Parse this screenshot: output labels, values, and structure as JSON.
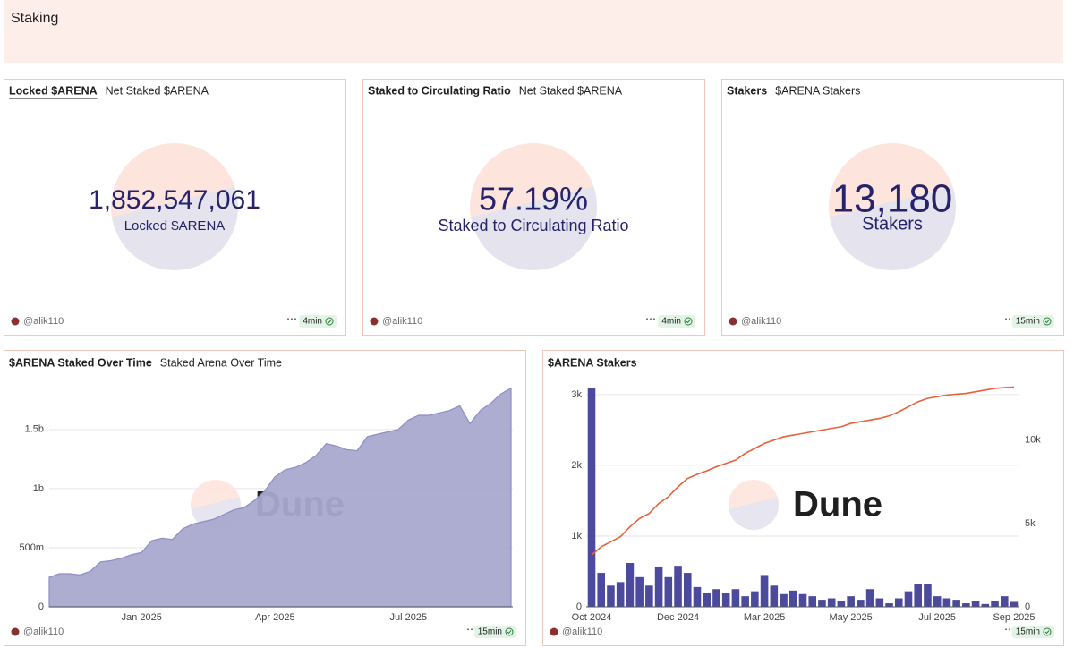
{
  "header": {
    "title": "Staking"
  },
  "counters": [
    {
      "tabs": [
        "Locked $ARENA",
        "Net Staked $ARENA"
      ],
      "value": "1,852,547,061",
      "label": "Locked $ARENA",
      "author": "@alik110",
      "updated": "4min"
    },
    {
      "tabs": [
        "Staked to Circulating Ratio",
        "Net Staked $ARENA"
      ],
      "value": "57.19%",
      "label": "Staked to Circulating Ratio",
      "author": "@alik110",
      "updated": "4min"
    },
    {
      "tabs": [
        "Stakers",
        "$ARENA Stakers"
      ],
      "value": "13,180",
      "label": "Stakers",
      "author": "@alik110",
      "updated": "15min"
    }
  ],
  "chart_data": [
    {
      "type": "area",
      "title": "$ARENA Staked Over Time",
      "subtitle": "Staked Arena Over Time",
      "categories": [
        null,
        null,
        null,
        null,
        null,
        null,
        null,
        null,
        null,
        "Jan 2025",
        null,
        null,
        null,
        null,
        null,
        null,
        null,
        null,
        null,
        null,
        null,
        null,
        "Apr 2025",
        null,
        null,
        null,
        null,
        null,
        null,
        null,
        null,
        null,
        null,
        null,
        null,
        "Jul 2025",
        null,
        null,
        null,
        null,
        null,
        null,
        null,
        null,
        null,
        null
      ],
      "series": [
        {
          "color": "#a9a8cf",
          "values": [
            250000000,
            280000000,
            280000000,
            270000000,
            300000000,
            380000000,
            390000000,
            410000000,
            440000000,
            460000000,
            560000000,
            580000000,
            570000000,
            660000000,
            700000000,
            720000000,
            740000000,
            780000000,
            820000000,
            840000000,
            900000000,
            980000000,
            1100000000,
            1160000000,
            1180000000,
            1220000000,
            1280000000,
            1380000000,
            1360000000,
            1330000000,
            1320000000,
            1440000000,
            1460000000,
            1480000000,
            1500000000,
            1580000000,
            1620000000,
            1620000000,
            1640000000,
            1660000000,
            1700000000,
            1550000000,
            1660000000,
            1720000000,
            1800000000,
            1850000000
          ]
        }
      ],
      "ylim": [
        0,
        1900000000
      ],
      "yticks": [
        0,
        {
          "value": 500000000,
          "label": "500m"
        },
        {
          "value": 1000000000,
          "label": "1b"
        },
        {
          "value": 1500000000,
          "label": "1.5b"
        }
      ],
      "grid": true,
      "watermark": "Dune",
      "author": "@alik110",
      "updated": "15min"
    },
    {
      "type": "combo",
      "title": "$ARENA Stakers",
      "categories": [
        "Oct 2024",
        null,
        null,
        null,
        null,
        null,
        null,
        null,
        null,
        "Dec 2024",
        null,
        null,
        null,
        null,
        null,
        null,
        null,
        null,
        "Mar 2025",
        null,
        null,
        null,
        null,
        null,
        null,
        null,
        null,
        "May 2025",
        null,
        null,
        null,
        null,
        null,
        null,
        null,
        null,
        "Jul 2025",
        null,
        null,
        null,
        null,
        null,
        null,
        null,
        "Sep 2025"
      ],
      "series": [
        {
          "type": "bar",
          "color": "#4b4a9d",
          "values": [
            3100,
            480,
            300,
            350,
            620,
            420,
            300,
            570,
            420,
            580,
            480,
            280,
            200,
            250,
            200,
            250,
            150,
            220,
            450,
            300,
            180,
            230,
            180,
            150,
            100,
            120,
            80,
            150,
            100,
            250,
            120,
            50,
            120,
            220,
            320,
            320,
            150,
            120,
            100,
            50,
            80,
            40,
            80,
            150,
            70
          ]
        },
        {
          "type": "line",
          "axis": "y2",
          "color": "#e8603c",
          "values": [
            3100,
            3600,
            3900,
            4200,
            4800,
            5300,
            5600,
            6200,
            6600,
            7200,
            7700,
            7950,
            8150,
            8400,
            8600,
            8800,
            9200,
            9500,
            9800,
            10000,
            10200,
            10300,
            10400,
            10500,
            10600,
            10700,
            10800,
            11000,
            11100,
            11200,
            11300,
            11450,
            11700,
            12000,
            12300,
            12500,
            12600,
            12700,
            12750,
            12800,
            12900,
            13000,
            13100,
            13150,
            13180
          ]
        }
      ],
      "ylim": [
        0,
        3100
      ],
      "yticks": [
        0,
        {
          "value": 1000,
          "label": "1k"
        },
        {
          "value": 2000,
          "label": "2k"
        },
        {
          "value": 3000,
          "label": "3k"
        }
      ],
      "y2lim": [
        0,
        13150
      ],
      "y2ticks": [
        0,
        {
          "value": 5000,
          "label": "5k"
        },
        {
          "value": 10000,
          "label": "10k"
        }
      ],
      "grid": true,
      "watermark": "Dune",
      "author": "@alik110",
      "updated": "15min"
    }
  ]
}
